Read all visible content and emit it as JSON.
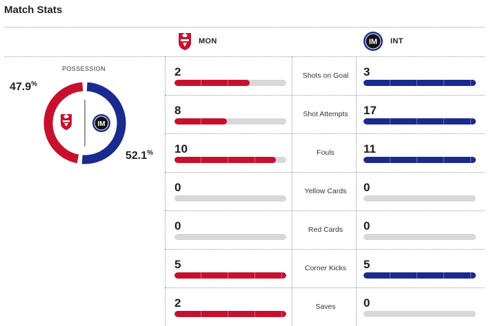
{
  "header": {
    "title": "Match Stats"
  },
  "teams": {
    "home": {
      "abbr": "MON",
      "color": "#c8102e",
      "logo_icon": "monza-crest-icon"
    },
    "away": {
      "abbr": "INT",
      "color": "#1a2a8f",
      "logo_icon": "inter-crest-icon"
    }
  },
  "possession": {
    "label": "POSSESSION",
    "home_value": "47.9",
    "away_value": "52.1",
    "unit": "%",
    "home_fraction": 0.479,
    "away_fraction": 0.521
  },
  "stats": [
    {
      "label": "Shots on Goal",
      "home": "2",
      "away": "3",
      "home_fill": 0.67,
      "away_fill": 1.0
    },
    {
      "label": "Shot Attempts",
      "home": "8",
      "away": "17",
      "home_fill": 0.47,
      "away_fill": 1.0
    },
    {
      "label": "Fouls",
      "home": "10",
      "away": "11",
      "home_fill": 0.91,
      "away_fill": 1.0
    },
    {
      "label": "Yellow Cards",
      "home": "0",
      "away": "0",
      "home_fill": 0.0,
      "away_fill": 0.0
    },
    {
      "label": "Red Cards",
      "home": "0",
      "away": "0",
      "home_fill": 0.0,
      "away_fill": 0.0
    },
    {
      "label": "Corner Kicks",
      "home": "5",
      "away": "5",
      "home_fill": 1.0,
      "away_fill": 1.0
    },
    {
      "label": "Saves",
      "home": "2",
      "away": "0",
      "home_fill": 1.0,
      "away_fill": 0.0
    }
  ]
}
